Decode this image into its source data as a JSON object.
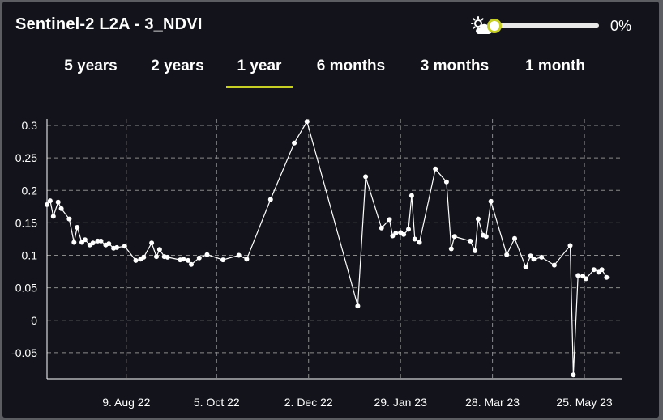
{
  "header": {
    "title": "Sentinel-2 L2A - 3_NDVI",
    "cloud_icon": "sun-cloud-icon",
    "cloud_coverage_percent": 0,
    "cloud_value_label": "0%"
  },
  "tabs": [
    {
      "label": "5 years",
      "active": false
    },
    {
      "label": "2 years",
      "active": false
    },
    {
      "label": "1 year",
      "active": true
    },
    {
      "label": "6 months",
      "active": false
    },
    {
      "label": "3 months",
      "active": false
    },
    {
      "label": "1 month",
      "active": false
    }
  ],
  "colors": {
    "background": "#13141b",
    "accent": "#c7cf24",
    "series": "#ffffff",
    "grid": "#8a8a8a"
  },
  "chart_data": {
    "type": "line",
    "title": "",
    "xlabel": "",
    "ylabel": "",
    "x_ticks": [
      "9. Aug 22",
      "5. Oct 22",
      "2. Dec 22",
      "29. Jan 23",
      "28. Mar 23",
      "25. May 23"
    ],
    "y_ticks": [
      "-0.05",
      "0",
      "0.05",
      "0.1",
      "0.15",
      "0.2",
      "0.25",
      "0.3"
    ],
    "ylim": [
      -0.09,
      0.31
    ],
    "xlim": [
      "2022-06-20",
      "2023-06-18"
    ],
    "grid": true,
    "markers": true,
    "series": [
      {
        "x": [
          "2022-06-20",
          "2022-06-22",
          "2022-06-24",
          "2022-06-27",
          "2022-06-29",
          "2022-07-04",
          "2022-07-07",
          "2022-07-09",
          "2022-07-12",
          "2022-07-14",
          "2022-07-17",
          "2022-07-19",
          "2022-07-22",
          "2022-07-24",
          "2022-07-27",
          "2022-07-29",
          "2022-08-01",
          "2022-08-03",
          "2022-08-08",
          "2022-08-15",
          "2022-08-18",
          "2022-08-20",
          "2022-08-25",
          "2022-08-28",
          "2022-08-30",
          "2022-09-02",
          "2022-09-04",
          "2022-09-12",
          "2022-09-14",
          "2022-09-17",
          "2022-09-19",
          "2022-09-24",
          "2022-09-29",
          "2022-10-09",
          "2022-10-19",
          "2022-10-24",
          "2022-11-08",
          "2022-11-23",
          "2022-12-01",
          "2023-01-02",
          "2023-01-07",
          "2023-01-17",
          "2023-01-22",
          "2023-01-24",
          "2023-01-26",
          "2023-01-29",
          "2023-01-31",
          "2023-02-03",
          "2023-02-05",
          "2023-02-07",
          "2023-02-10",
          "2023-02-20",
          "2023-02-27",
          "2023-03-02",
          "2023-03-04",
          "2023-03-14",
          "2023-03-17",
          "2023-03-19",
          "2023-03-22",
          "2023-03-24",
          "2023-03-27",
          "2023-04-06",
          "2023-04-11",
          "2023-04-18",
          "2023-04-21",
          "2023-04-23",
          "2023-04-28",
          "2023-05-06",
          "2023-05-16",
          "2023-05-18",
          "2023-05-21",
          "2023-05-24",
          "2023-05-26",
          "2023-05-31",
          "2023-06-03",
          "2023-06-05",
          "2023-06-08"
        ],
        "values": [
          0.178,
          0.184,
          0.16,
          0.182,
          0.172,
          0.156,
          0.12,
          0.143,
          0.12,
          0.124,
          0.116,
          0.119,
          0.122,
          0.122,
          0.116,
          0.118,
          0.111,
          0.112,
          0.114,
          0.092,
          0.094,
          0.097,
          0.119,
          0.098,
          0.109,
          0.098,
          0.097,
          0.093,
          0.094,
          0.092,
          0.086,
          0.096,
          0.101,
          0.093,
          0.1,
          0.094,
          0.186,
          0.273,
          0.306,
          0.022,
          0.221,
          0.142,
          0.155,
          0.13,
          0.134,
          0.135,
          0.132,
          0.14,
          0.192,
          0.125,
          0.12,
          0.233,
          0.213,
          0.11,
          0.129,
          0.122,
          0.107,
          0.156,
          0.131,
          0.129,
          0.183,
          0.101,
          0.126,
          0.082,
          0.099,
          0.094,
          0.097,
          0.085,
          0.115,
          -0.084,
          0.069,
          0.068,
          0.064,
          0.078,
          0.074,
          0.078,
          0.066
        ]
      }
    ]
  }
}
